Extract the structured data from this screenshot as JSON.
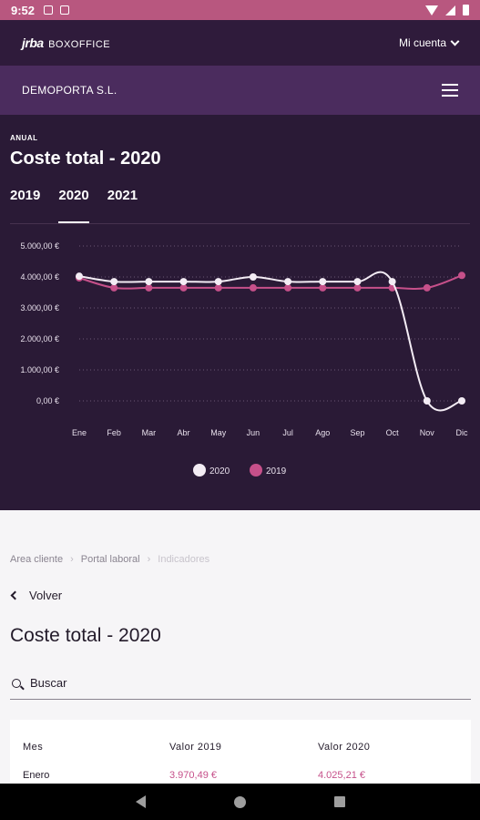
{
  "statusbar": {
    "time": "9:52"
  },
  "topnav": {
    "logo_mark": "jrba",
    "logo_text": "BOXOFFICE",
    "account_label": "Mi cuenta"
  },
  "companybar": {
    "company": "DEMOPORTA S.L."
  },
  "chart_panel": {
    "kicker": "ANUAL",
    "title": "Coste total - 2020",
    "years": [
      "2019",
      "2020",
      "2021"
    ],
    "active_year": "2020"
  },
  "chart_data": {
    "type": "line",
    "categories": [
      "Ene",
      "Feb",
      "Mar",
      "Abr",
      "May",
      "Jun",
      "Jul",
      "Ago",
      "Sep",
      "Oct",
      "Nov",
      "Dic"
    ],
    "series": [
      {
        "name": "2020",
        "color": "#f3ecf4",
        "values": [
          4025.21,
          3850,
          3850,
          3850,
          3850,
          4000,
          3850,
          3850,
          3850,
          3850,
          0,
          0
        ]
      },
      {
        "name": "2019",
        "color": "#c6508a",
        "values": [
          3970.49,
          3650,
          3650,
          3650,
          3650,
          3650,
          3650,
          3650,
          3650,
          3650,
          3650,
          4050
        ]
      }
    ],
    "y_ticks": [
      "5.000,00 €",
      "4.000,00 €",
      "3.000,00 €",
      "2.000,00 €",
      "1.000,00 €",
      "0,00 €"
    ],
    "ylim": [
      0,
      5000
    ],
    "grid": true,
    "legend": "bottom-center"
  },
  "breadcrumb": [
    "Area cliente",
    "Portal laboral",
    "Indicadores"
  ],
  "back_label": "Volver",
  "page_title": "Coste total - 2020",
  "search": {
    "placeholder": "Buscar"
  },
  "table": {
    "headers": [
      "Mes",
      "Valor 2019",
      "Valor 2020"
    ],
    "rows": [
      [
        "Enero",
        "3.970,49 €",
        "4.025,21 €"
      ]
    ]
  }
}
